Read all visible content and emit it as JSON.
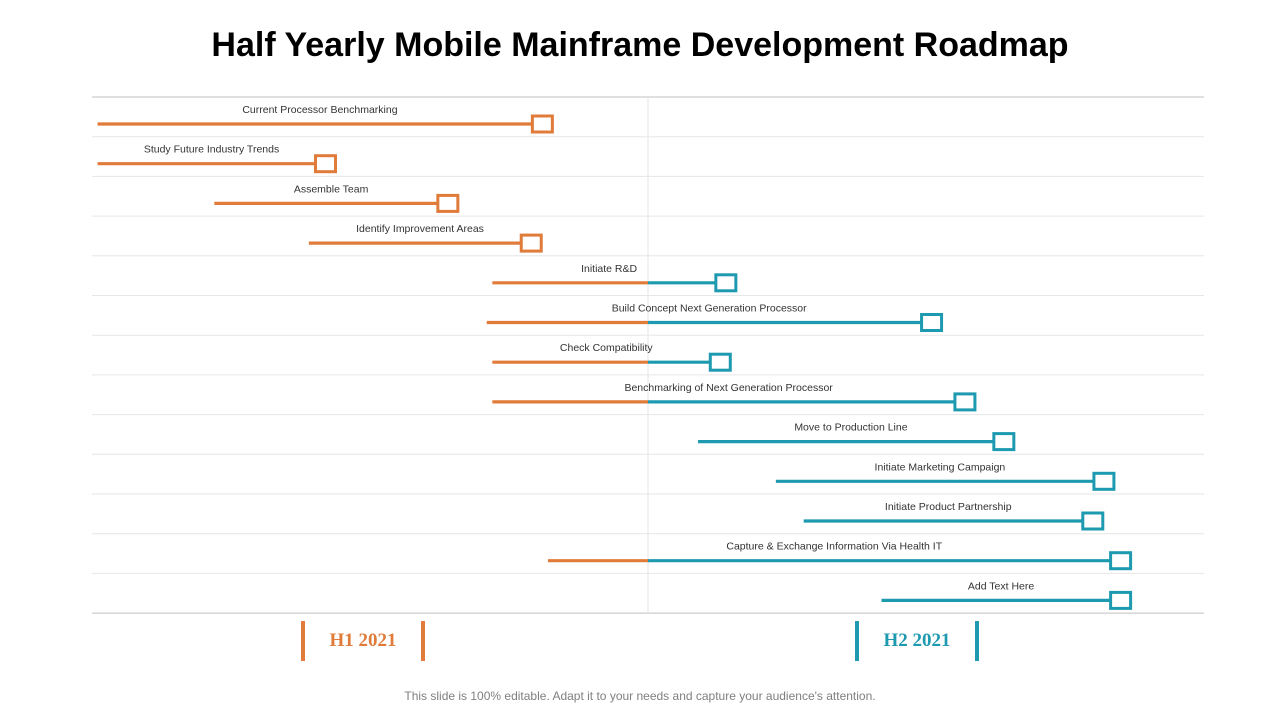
{
  "title": "Half Yearly Mobile Mainframe Development Roadmap",
  "colors": {
    "h1": "#E07B39",
    "h2": "#1E9AB0",
    "grid": "#e6e6e6",
    "axis": "#bfbfbf"
  },
  "periods": [
    {
      "label": "H1 2021",
      "color": "#E07B39"
    },
    {
      "label": "H2 2021",
      "color": "#1E9AB0"
    }
  ],
  "tasks": [
    {
      "label": "Current Processor Benchmarking",
      "start": 0.01,
      "end": 0.81
    },
    {
      "label": "Study Future Industry Trends",
      "start": 0.01,
      "end": 0.42
    },
    {
      "label": "Assemble Team",
      "start": 0.22,
      "end": 0.64
    },
    {
      "label": "Identify Improvement Areas",
      "start": 0.39,
      "end": 0.79
    },
    {
      "label": "Initiate  R&D",
      "start": 0.72,
      "end": 1.14
    },
    {
      "label": "Build Concept Next Generation Processor",
      "start": 0.71,
      "end": 1.51
    },
    {
      "label": "Check Compatibility",
      "start": 0.72,
      "end": 1.13
    },
    {
      "label": "Benchmarking of Next Generation Processor",
      "start": 0.72,
      "end": 1.57
    },
    {
      "label": "Move to Production Line",
      "start": 1.09,
      "end": 1.64
    },
    {
      "label": "Initiate  Marketing Campaign",
      "start": 1.23,
      "end": 1.82
    },
    {
      "label": "Initiate  Product Partnership",
      "start": 1.28,
      "end": 1.8
    },
    {
      "label": "Capture & Exchange Information  Via Health  IT",
      "start": 0.82,
      "end": 1.85
    },
    {
      "label": "Add Text Here",
      "start": 1.42,
      "end": 1.85
    }
  ],
  "footer": "This slide is 100% editable. Adapt it to your needs and capture your audience's attention."
}
